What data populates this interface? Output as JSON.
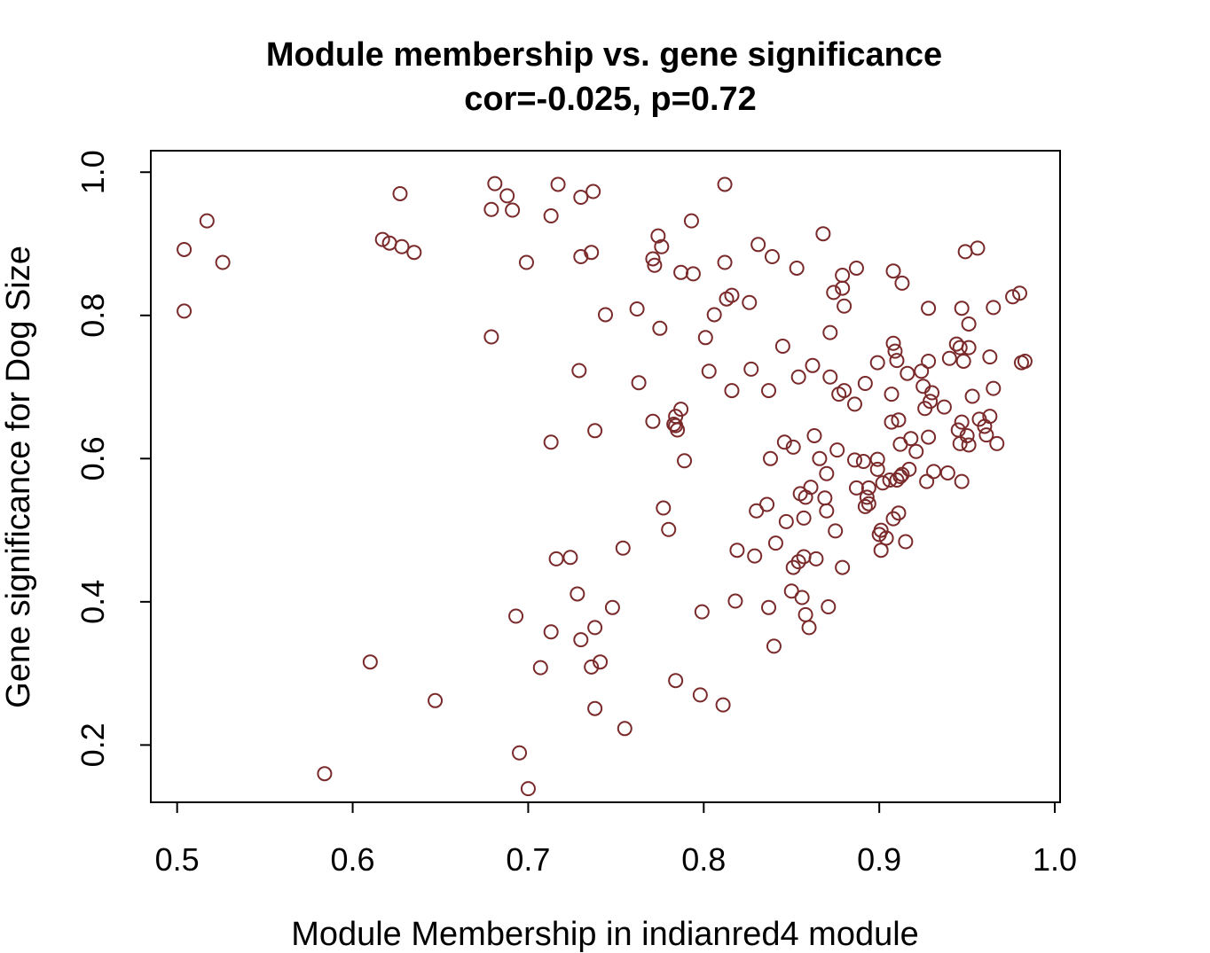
{
  "chart_data": {
    "type": "scatter",
    "title": "Module membership vs. gene significance",
    "subtitle": "cor=-0.025, p=0.72",
    "xlabel": "Module Membership in indianred4 module",
    "ylabel": "Gene significance for Dog Size",
    "xlim": [
      0.485,
      1.003
    ],
    "ylim": [
      0.12,
      1.03
    ],
    "xticks": [
      0.5,
      0.6,
      0.7,
      0.8,
      0.9,
      1.0
    ],
    "xtick_labels": [
      "0.5",
      "0.6",
      "0.7",
      "0.8",
      "0.9",
      "1.0"
    ],
    "yticks": [
      0.2,
      0.4,
      0.6,
      0.8,
      1.0
    ],
    "ytick_labels": [
      "0.2",
      "0.4",
      "0.6",
      "0.8",
      "1.0"
    ],
    "grid": false,
    "legend": "none",
    "marker_color": "#7a2a2a",
    "marker": "open-circle",
    "points": [
      [
        0.504,
        0.892
      ],
      [
        0.504,
        0.806
      ],
      [
        0.517,
        0.932
      ],
      [
        0.526,
        0.874
      ],
      [
        0.584,
        0.16
      ],
      [
        0.61,
        0.316
      ],
      [
        0.617,
        0.906
      ],
      [
        0.621,
        0.901
      ],
      [
        0.627,
        0.97
      ],
      [
        0.628,
        0.896
      ],
      [
        0.635,
        0.888
      ],
      [
        0.647,
        0.262
      ],
      [
        0.679,
        0.948
      ],
      [
        0.679,
        0.77
      ],
      [
        0.681,
        0.984
      ],
      [
        0.688,
        0.967
      ],
      [
        0.691,
        0.947
      ],
      [
        0.693,
        0.38
      ],
      [
        0.695,
        0.189
      ],
      [
        0.699,
        0.874
      ],
      [
        0.7,
        0.139
      ],
      [
        0.707,
        0.308
      ],
      [
        0.713,
        0.939
      ],
      [
        0.713,
        0.623
      ],
      [
        0.713,
        0.358
      ],
      [
        0.716,
        0.46
      ],
      [
        0.717,
        0.983
      ],
      [
        0.724,
        0.462
      ],
      [
        0.728,
        0.411
      ],
      [
        0.729,
        0.723
      ],
      [
        0.73,
        0.882
      ],
      [
        0.73,
        0.965
      ],
      [
        0.73,
        0.347
      ],
      [
        0.736,
        0.888
      ],
      [
        0.736,
        0.309
      ],
      [
        0.737,
        0.973
      ],
      [
        0.738,
        0.639
      ],
      [
        0.738,
        0.364
      ],
      [
        0.738,
        0.251
      ],
      [
        0.741,
        0.316
      ],
      [
        0.744,
        0.801
      ],
      [
        0.748,
        0.392
      ],
      [
        0.754,
        0.475
      ],
      [
        0.755,
        0.223
      ],
      [
        0.762,
        0.809
      ],
      [
        0.763,
        0.706
      ],
      [
        0.771,
        0.652
      ],
      [
        0.771,
        0.879
      ],
      [
        0.772,
        0.87
      ],
      [
        0.774,
        0.911
      ],
      [
        0.775,
        0.782
      ],
      [
        0.776,
        0.896
      ],
      [
        0.777,
        0.531
      ],
      [
        0.78,
        0.501
      ],
      [
        0.783,
        0.648
      ],
      [
        0.784,
        0.659
      ],
      [
        0.784,
        0.646
      ],
      [
        0.784,
        0.29
      ],
      [
        0.785,
        0.64
      ],
      [
        0.787,
        0.669
      ],
      [
        0.787,
        0.86
      ],
      [
        0.789,
        0.597
      ],
      [
        0.793,
        0.932
      ],
      [
        0.794,
        0.858
      ],
      [
        0.799,
        0.386
      ],
      [
        0.798,
        0.27
      ],
      [
        0.801,
        0.769
      ],
      [
        0.803,
        0.722
      ],
      [
        0.806,
        0.801
      ],
      [
        0.811,
        0.256
      ],
      [
        0.812,
        0.983
      ],
      [
        0.812,
        0.874
      ],
      [
        0.813,
        0.823
      ],
      [
        0.816,
        0.828
      ],
      [
        0.816,
        0.695
      ],
      [
        0.818,
        0.401
      ],
      [
        0.819,
        0.472
      ],
      [
        0.826,
        0.818
      ],
      [
        0.827,
        0.725
      ],
      [
        0.829,
        0.464
      ],
      [
        0.83,
        0.527
      ],
      [
        0.831,
        0.899
      ],
      [
        0.836,
        0.536
      ],
      [
        0.837,
        0.392
      ],
      [
        0.837,
        0.695
      ],
      [
        0.838,
        0.6
      ],
      [
        0.839,
        0.882
      ],
      [
        0.84,
        0.338
      ],
      [
        0.841,
        0.482
      ],
      [
        0.845,
        0.757
      ],
      [
        0.846,
        0.623
      ],
      [
        0.847,
        0.512
      ],
      [
        0.85,
        0.415
      ],
      [
        0.851,
        0.448
      ],
      [
        0.851,
        0.616
      ],
      [
        0.853,
        0.866
      ],
      [
        0.854,
        0.714
      ],
      [
        0.854,
        0.456
      ],
      [
        0.855,
        0.551
      ],
      [
        0.856,
        0.406
      ],
      [
        0.857,
        0.463
      ],
      [
        0.857,
        0.517
      ],
      [
        0.858,
        0.546
      ],
      [
        0.858,
        0.382
      ],
      [
        0.86,
        0.364
      ],
      [
        0.861,
        0.56
      ],
      [
        0.862,
        0.73
      ],
      [
        0.863,
        0.632
      ],
      [
        0.864,
        0.46
      ],
      [
        0.866,
        0.6
      ],
      [
        0.868,
        0.914
      ],
      [
        0.869,
        0.545
      ],
      [
        0.87,
        0.527
      ],
      [
        0.87,
        0.579
      ],
      [
        0.871,
        0.393
      ],
      [
        0.872,
        0.776
      ],
      [
        0.872,
        0.714
      ],
      [
        0.874,
        0.832
      ],
      [
        0.875,
        0.499
      ],
      [
        0.876,
        0.612
      ],
      [
        0.877,
        0.69
      ],
      [
        0.879,
        0.838
      ],
      [
        0.879,
        0.856
      ],
      [
        0.879,
        0.448
      ],
      [
        0.88,
        0.695
      ],
      [
        0.88,
        0.813
      ],
      [
        0.886,
        0.598
      ],
      [
        0.886,
        0.676
      ],
      [
        0.887,
        0.559
      ],
      [
        0.887,
        0.866
      ],
      [
        0.891,
        0.596
      ],
      [
        0.892,
        0.533
      ],
      [
        0.892,
        0.705
      ],
      [
        0.893,
        0.546
      ],
      [
        0.894,
        0.559
      ],
      [
        0.894,
        0.537
      ],
      [
        0.899,
        0.734
      ],
      [
        0.899,
        0.599
      ],
      [
        0.899,
        0.585
      ],
      [
        0.9,
        0.494
      ],
      [
        0.901,
        0.5
      ],
      [
        0.901,
        0.472
      ],
      [
        0.902,
        0.566
      ],
      [
        0.904,
        0.489
      ],
      [
        0.906,
        0.57
      ],
      [
        0.907,
        0.651
      ],
      [
        0.907,
        0.69
      ],
      [
        0.908,
        0.761
      ],
      [
        0.908,
        0.862
      ],
      [
        0.908,
        0.516
      ],
      [
        0.909,
        0.75
      ],
      [
        0.91,
        0.737
      ],
      [
        0.91,
        0.57
      ],
      [
        0.911,
        0.654
      ],
      [
        0.911,
        0.524
      ],
      [
        0.912,
        0.575
      ],
      [
        0.912,
        0.62
      ],
      [
        0.913,
        0.578
      ],
      [
        0.913,
        0.845
      ],
      [
        0.915,
        0.484
      ],
      [
        0.916,
        0.719
      ],
      [
        0.917,
        0.585
      ],
      [
        0.918,
        0.628
      ],
      [
        0.921,
        0.61
      ],
      [
        0.924,
        0.722
      ],
      [
        0.925,
        0.701
      ],
      [
        0.926,
        0.67
      ],
      [
        0.927,
        0.568
      ],
      [
        0.928,
        0.63
      ],
      [
        0.928,
        0.81
      ],
      [
        0.928,
        0.736
      ],
      [
        0.929,
        0.68
      ],
      [
        0.93,
        0.692
      ],
      [
        0.931,
        0.582
      ],
      [
        0.937,
        0.672
      ],
      [
        0.939,
        0.58
      ],
      [
        0.94,
        0.74
      ],
      [
        0.944,
        0.76
      ],
      [
        0.945,
        0.64
      ],
      [
        0.946,
        0.621
      ],
      [
        0.946,
        0.755
      ],
      [
        0.947,
        0.651
      ],
      [
        0.947,
        0.81
      ],
      [
        0.947,
        0.568
      ],
      [
        0.948,
        0.736
      ],
      [
        0.949,
        0.889
      ],
      [
        0.95,
        0.632
      ],
      [
        0.951,
        0.788
      ],
      [
        0.951,
        0.755
      ],
      [
        0.951,
        0.619
      ],
      [
        0.953,
        0.687
      ],
      [
        0.956,
        0.894
      ],
      [
        0.957,
        0.655
      ],
      [
        0.96,
        0.645
      ],
      [
        0.961,
        0.633
      ],
      [
        0.963,
        0.659
      ],
      [
        0.963,
        0.742
      ],
      [
        0.965,
        0.811
      ],
      [
        0.965,
        0.698
      ],
      [
        0.967,
        0.621
      ],
      [
        0.976,
        0.826
      ],
      [
        0.98,
        0.831
      ],
      [
        0.981,
        0.734
      ],
      [
        0.983,
        0.736
      ]
    ]
  }
}
